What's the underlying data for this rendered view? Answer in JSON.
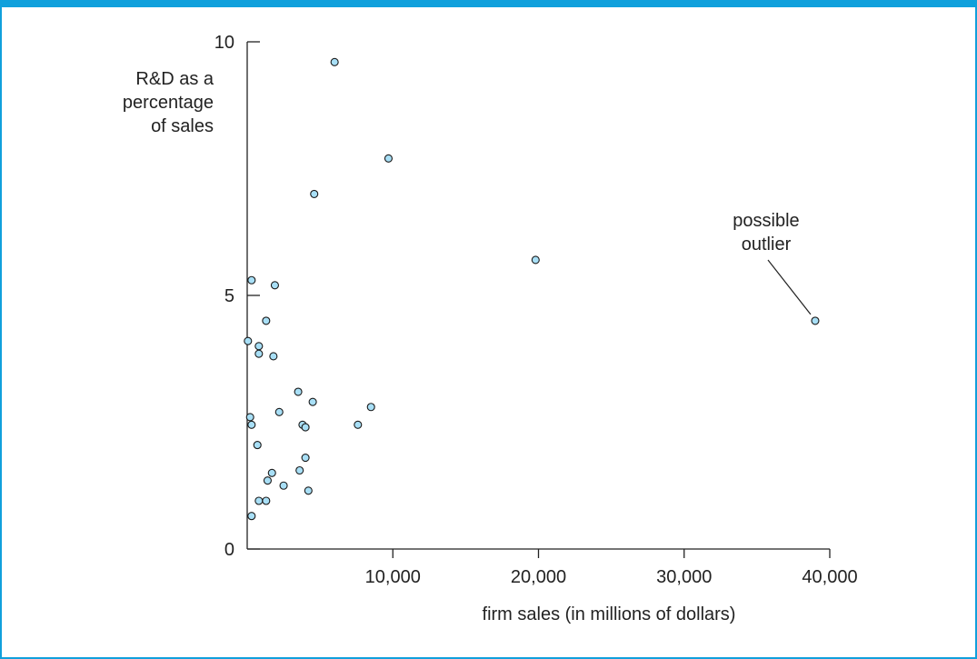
{
  "colors": {
    "border": "#10a0dc",
    "marker_fill": "#a8dff6",
    "marker_stroke": "#1a1a1a",
    "axis": "#222222"
  },
  "chart_data": {
    "type": "scatter",
    "ylabel_lines": [
      "R&D as a",
      "percentage",
      "of sales"
    ],
    "xlabel": "firm sales (in millions of dollars)",
    "xlim": [
      0,
      40000
    ],
    "ylim": [
      0,
      10
    ],
    "x_ticks": [
      10000,
      20000,
      30000,
      40000
    ],
    "x_tick_labels": [
      "10,000",
      "20,000",
      "30,000",
      "40,000"
    ],
    "y_ticks": [
      0,
      5,
      10
    ],
    "y_tick_labels": [
      "0",
      "5",
      "10"
    ],
    "annotation": {
      "lines": [
        "possible",
        "outlier"
      ],
      "target": [
        39000,
        4.5
      ]
    },
    "points": [
      [
        6000,
        9.6
      ],
      [
        9700,
        7.7
      ],
      [
        4600,
        7.0
      ],
      [
        19800,
        5.7
      ],
      [
        39000,
        4.5
      ],
      [
        300,
        5.3
      ],
      [
        1900,
        5.2
      ],
      [
        1300,
        4.5
      ],
      [
        50,
        4.1
      ],
      [
        800,
        4.0
      ],
      [
        800,
        3.85
      ],
      [
        1800,
        3.8
      ],
      [
        3500,
        3.1
      ],
      [
        4500,
        2.9
      ],
      [
        8500,
        2.8
      ],
      [
        2200,
        2.7
      ],
      [
        200,
        2.6
      ],
      [
        300,
        2.45
      ],
      [
        3800,
        2.45
      ],
      [
        4000,
        2.4
      ],
      [
        7600,
        2.45
      ],
      [
        700,
        2.05
      ],
      [
        4000,
        1.8
      ],
      [
        1700,
        1.5
      ],
      [
        1400,
        1.35
      ],
      [
        3600,
        1.55
      ],
      [
        2500,
        1.25
      ],
      [
        4200,
        1.15
      ],
      [
        800,
        0.95
      ],
      [
        1300,
        0.95
      ],
      [
        300,
        0.65
      ]
    ]
  }
}
